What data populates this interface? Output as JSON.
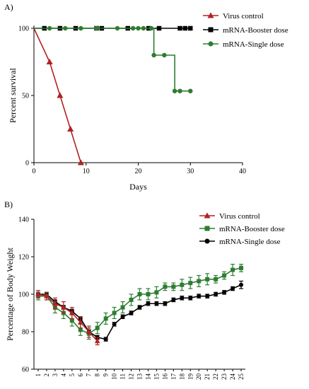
{
  "chart_data": [
    {
      "type": "line",
      "panel_label": "A)",
      "title": "",
      "xlabel": "Days",
      "ylabel": "Percent survival",
      "xlim": [
        0,
        40
      ],
      "ylim": [
        0,
        100
      ],
      "x_ticks": [
        0,
        10,
        20,
        30,
        40
      ],
      "y_ticks": [
        0,
        50,
        100
      ],
      "legend_position": "top-right",
      "series": [
        {
          "name": "Virus control",
          "color": "#b22222",
          "marker": "triangle",
          "x": [
            0,
            3,
            5,
            7,
            9
          ],
          "y": [
            100,
            75,
            50,
            25,
            0
          ]
        },
        {
          "name": "mRNA-Booster dose",
          "color": "#000000",
          "marker": "square",
          "x": [
            0,
            2,
            5,
            8,
            12,
            13,
            18,
            22,
            24,
            28,
            29,
            30
          ],
          "y": [
            100,
            100,
            100,
            100,
            100,
            100,
            100,
            100,
            100,
            100,
            100,
            100
          ]
        },
        {
          "name": "mRNA-Single dose",
          "color": "#2e7d32",
          "marker": "circle",
          "x": [
            0,
            3,
            6,
            9,
            12,
            16,
            19,
            20,
            21,
            22.5,
            23,
            25,
            27,
            28,
            30
          ],
          "y": [
            100,
            100,
            100,
            100,
            100,
            100,
            100,
            100,
            100,
            100,
            80,
            80,
            53.3,
            53.3,
            53.3
          ]
        }
      ]
    },
    {
      "type": "line",
      "panel_label": "B)",
      "title": "",
      "xlabel": "",
      "ylabel": "Percentage of Body Weight",
      "xlim": [
        0.5,
        25.5
      ],
      "ylim": [
        60,
        140
      ],
      "categories": [
        "1",
        "2",
        "3",
        "4",
        "5",
        "6",
        "7",
        "8",
        "9",
        "10",
        "11",
        "12",
        "13",
        "14",
        "15",
        "16",
        "17",
        "18",
        "19",
        "20",
        "21",
        "22",
        "23",
        "24",
        "25"
      ],
      "y_ticks": [
        60,
        80,
        100,
        120,
        140
      ],
      "legend_position": "top-right",
      "series": [
        {
          "name": "Virus control",
          "color": "#b22222",
          "marker": "triangle",
          "x": [
            1,
            2,
            3,
            4,
            5,
            6,
            7,
            8
          ],
          "values": [
            100,
            99,
            95,
            93,
            90,
            85,
            80,
            75
          ],
          "errors": [
            2,
            2,
            3,
            3,
            3,
            3,
            3,
            2
          ]
        },
        {
          "name": "mRNA-Booster dose",
          "color": "#2e7d32",
          "marker": "square",
          "x": [
            1,
            2,
            3,
            4,
            5,
            6,
            7,
            8,
            9,
            10,
            11,
            12,
            13,
            14,
            15,
            16,
            17,
            18,
            19,
            20,
            21,
            22,
            23,
            24,
            25
          ],
          "values": [
            99,
            99,
            93,
            90,
            86,
            81,
            79,
            82,
            87,
            90,
            93,
            97,
            100,
            100,
            101,
            104,
            104,
            105,
            106,
            107,
            108,
            108,
            110,
            113,
            114
          ],
          "errors": [
            2,
            2,
            3,
            3,
            3,
            3,
            3,
            3,
            3,
            3,
            3,
            3,
            3,
            3,
            3,
            2,
            2,
            3,
            3,
            3,
            3,
            2,
            2,
            3,
            2
          ]
        },
        {
          "name": "mRNA-Single dose",
          "color": "#000000",
          "marker": "circle",
          "x": [
            1,
            2,
            3,
            4,
            5,
            6,
            7,
            8,
            9,
            10,
            11,
            12,
            13,
            14,
            15,
            16,
            17,
            18,
            19,
            20,
            21,
            22,
            23,
            24,
            25
          ],
          "values": [
            100,
            100,
            96,
            93,
            91,
            87,
            80,
            77,
            76,
            84,
            88,
            90,
            93,
            95,
            95,
            95,
            97,
            98,
            98,
            99,
            99,
            100,
            101,
            103,
            105
          ],
          "errors": [
            1,
            1,
            1,
            1,
            1,
            1,
            1,
            1,
            1,
            1,
            1,
            1,
            1,
            1,
            1,
            1,
            1,
            1,
            1,
            1,
            1,
            1,
            1,
            1,
            2
          ]
        }
      ]
    }
  ]
}
